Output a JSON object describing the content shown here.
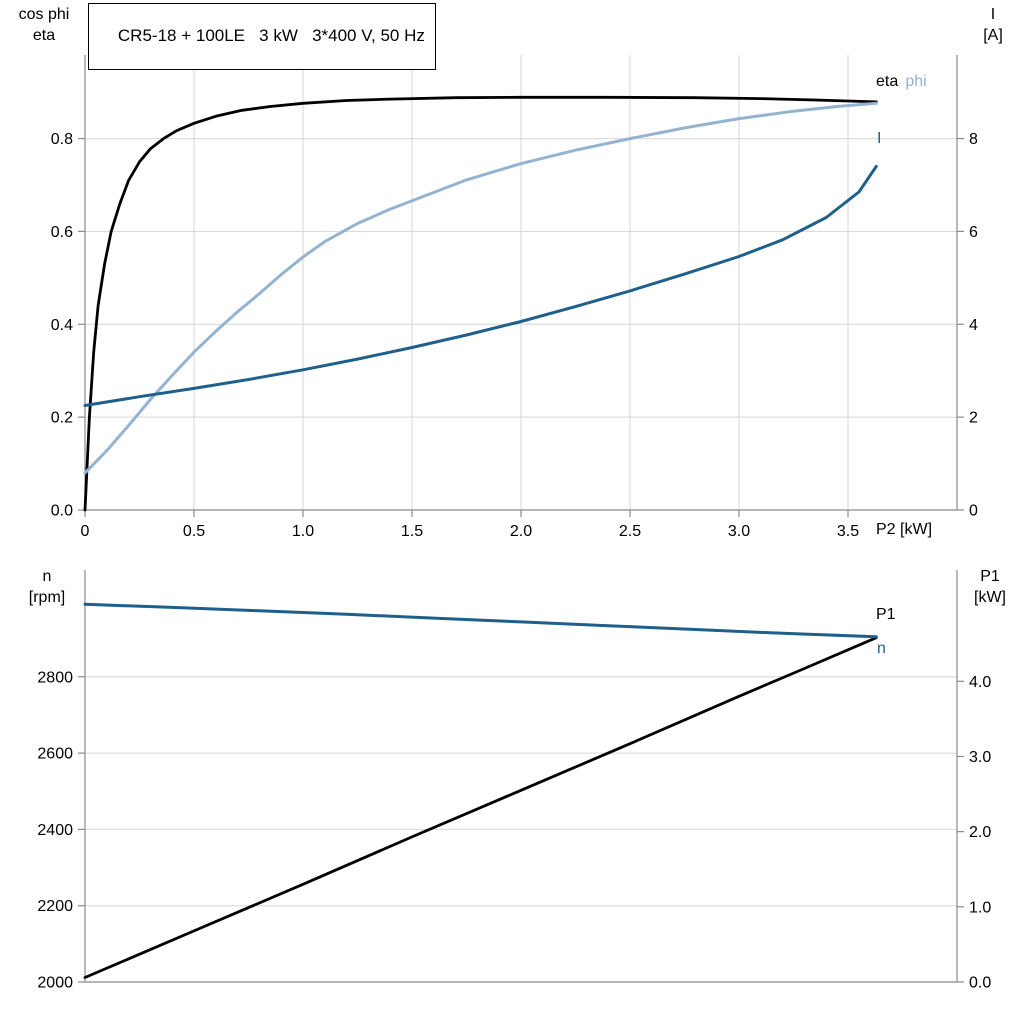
{
  "title": "CR5-18 + 100LE   3 kW   3*400 V, 50 Hz",
  "colors": {
    "black": "#000000",
    "dark_blue": "#1f5f8b",
    "light_blue": "#94b3d1",
    "grid": "#d6d6d6",
    "axis": "#8a8a8a"
  },
  "labels": {
    "top_left_line1": "cos phi",
    "top_left_line2": "eta",
    "top_right_line1": "I",
    "top_right_line2": "[A]",
    "mid_left_line1": "n",
    "mid_left_line2": "[rpm]",
    "mid_right_line1": "P1",
    "mid_right_line2": "[kW]",
    "x_axis": "P2 [kW]",
    "curve_eta": "eta",
    "curve_cos_phi": "cos phi",
    "curve_current": "I",
    "curve_p1": "P1",
    "curve_n": "n"
  },
  "chart_data": [
    {
      "type": "line",
      "title": "CR5-18 + 100LE   3 kW   3*400 V, 50 Hz",
      "x_axis": {
        "label": "P2 [kW]",
        "min": 0,
        "max": 4,
        "tick_values": [
          0,
          0.5,
          1,
          1.5,
          2,
          2.5,
          3,
          3.5
        ],
        "tick_labels": [
          "0",
          "0.5",
          "1.0",
          "1.5",
          "2.0",
          "2.5",
          "3.0",
          "3.5"
        ]
      },
      "y_left": {
        "label": "cos phi / eta",
        "min": 0,
        "max": 0.98,
        "tick_values": [
          0,
          0.2,
          0.4,
          0.6,
          0.8
        ],
        "tick_labels": [
          "0.0",
          "0.2",
          "0.4",
          "0.6",
          "0.8"
        ]
      },
      "y_right": {
        "label": "I [A]",
        "min": 0,
        "max": 9.8,
        "tick_values": [
          0,
          2,
          4,
          6,
          8
        ],
        "tick_labels": [
          "0",
          "2",
          "4",
          "6",
          "8"
        ]
      },
      "grid": "both",
      "series": [
        {
          "name": "eta",
          "axis": "left",
          "color": "#000000",
          "width": 2.8,
          "points": [
            [
              0,
              0
            ],
            [
              0.02,
              0.2
            ],
            [
              0.04,
              0.34
            ],
            [
              0.06,
              0.44
            ],
            [
              0.09,
              0.53
            ],
            [
              0.12,
              0.6
            ],
            [
              0.16,
              0.66
            ],
            [
              0.2,
              0.71
            ],
            [
              0.25,
              0.75
            ],
            [
              0.3,
              0.778
            ],
            [
              0.36,
              0.8
            ],
            [
              0.42,
              0.817
            ],
            [
              0.5,
              0.833
            ],
            [
              0.6,
              0.848
            ],
            [
              0.72,
              0.861
            ],
            [
              0.85,
              0.869
            ],
            [
              1,
              0.876
            ],
            [
              1.2,
              0.882
            ],
            [
              1.4,
              0.885
            ],
            [
              1.7,
              0.888
            ],
            [
              2,
              0.889
            ],
            [
              2.4,
              0.889
            ],
            [
              2.8,
              0.888
            ],
            [
              3.1,
              0.886
            ],
            [
              3.35,
              0.883
            ],
            [
              3.63,
              0.879
            ]
          ]
        },
        {
          "name": "cos phi",
          "axis": "left",
          "color": "#94b3d1",
          "width": 3,
          "points": [
            [
              0,
              0.08
            ],
            [
              0.1,
              0.128
            ],
            [
              0.2,
              0.182
            ],
            [
              0.3,
              0.238
            ],
            [
              0.4,
              0.29
            ],
            [
              0.5,
              0.34
            ],
            [
              0.6,
              0.385
            ],
            [
              0.7,
              0.427
            ],
            [
              0.8,
              0.466
            ],
            [
              0.9,
              0.507
            ],
            [
              1,
              0.545
            ],
            [
              1.1,
              0.578
            ],
            [
              1.25,
              0.617
            ],
            [
              1.4,
              0.648
            ],
            [
              1.55,
              0.675
            ],
            [
              1.75,
              0.711
            ],
            [
              2,
              0.746
            ],
            [
              2.25,
              0.775
            ],
            [
              2.5,
              0.8
            ],
            [
              2.75,
              0.823
            ],
            [
              3,
              0.843
            ],
            [
              3.25,
              0.859
            ],
            [
              3.45,
              0.869
            ],
            [
              3.63,
              0.876
            ]
          ]
        },
        {
          "name": "I",
          "axis": "right",
          "color": "#1f5f8b",
          "width": 3,
          "points": [
            [
              0,
              2.25
            ],
            [
              0.25,
              2.44
            ],
            [
              0.5,
              2.62
            ],
            [
              0.75,
              2.81
            ],
            [
              1,
              3.02
            ],
            [
              1.25,
              3.25
            ],
            [
              1.5,
              3.5
            ],
            [
              1.75,
              3.77
            ],
            [
              2,
              4.06
            ],
            [
              2.25,
              4.38
            ],
            [
              2.5,
              4.72
            ],
            [
              2.75,
              5.08
            ],
            [
              3,
              5.46
            ],
            [
              3.2,
              5.82
            ],
            [
              3.4,
              6.3
            ],
            [
              3.55,
              6.85
            ],
            [
              3.63,
              7.4
            ]
          ]
        }
      ]
    },
    {
      "type": "line",
      "title": "",
      "x_axis": {
        "label": "",
        "min": 0,
        "max": 4,
        "tick_values": [],
        "tick_labels": []
      },
      "y_left": {
        "label": "n [rpm]",
        "min": 2000,
        "max": 3080,
        "tick_values": [
          2000,
          2200,
          2400,
          2600,
          2800
        ],
        "tick_labels": [
          "2000",
          "2200",
          "2400",
          "2600",
          "2800"
        ]
      },
      "y_right": {
        "label": "P1 [kW]",
        "min": 0,
        "max": 5.48,
        "tick_values": [
          0,
          1,
          2,
          3,
          4
        ],
        "tick_labels": [
          "0.0",
          "1.0",
          "2.0",
          "3.0",
          "4.0"
        ]
      },
      "grid": "horizontal",
      "series": [
        {
          "name": "P1",
          "axis": "right",
          "color": "#000000",
          "width": 2.8,
          "points": [
            [
              0,
              0.06
            ],
            [
              0.5,
              0.68
            ],
            [
              1,
              1.3
            ],
            [
              1.5,
              1.93
            ],
            [
              2,
              2.55
            ],
            [
              2.5,
              3.17
            ],
            [
              3,
              3.8
            ],
            [
              3.3,
              4.17
            ],
            [
              3.63,
              4.58
            ]
          ]
        },
        {
          "name": "n",
          "axis": "left",
          "color": "#1f5f8b",
          "width": 3,
          "points": [
            [
              0,
              2990
            ],
            [
              0.4,
              2982
            ],
            [
              0.8,
              2973
            ],
            [
              1.2,
              2964
            ],
            [
              1.6,
              2954
            ],
            [
              2,
              2944
            ],
            [
              2.4,
              2934
            ],
            [
              2.8,
              2924
            ],
            [
              3.2,
              2914
            ],
            [
              3.63,
              2905
            ]
          ]
        }
      ]
    }
  ]
}
